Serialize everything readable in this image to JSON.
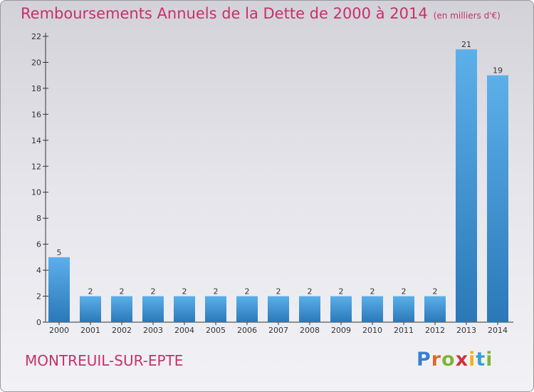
{
  "title": "Remboursements Annuels de la Dette de 2000 à 2014",
  "unit": "(en milliers d'€)",
  "commune": "MONTREUIL-SUR-EPTE",
  "logo": {
    "text": "Proxiti",
    "letter_colors": [
      "#3a7fd0",
      "#e0672a",
      "#7fb43a",
      "#d2303c",
      "#f0b020",
      "#3aa0d0",
      "#7fb43a"
    ]
  },
  "colors": {
    "title": "#c8306a",
    "bar_top": "#5cb0ea",
    "bar_bottom": "#2a78b8",
    "axis": "#333333"
  },
  "chart_data": {
    "type": "bar",
    "categories": [
      "2000",
      "2001",
      "2002",
      "2003",
      "2004",
      "2005",
      "2006",
      "2007",
      "2008",
      "2009",
      "2010",
      "2011",
      "2012",
      "2013",
      "2014"
    ],
    "values": [
      5,
      2,
      2,
      2,
      2,
      2,
      2,
      2,
      2,
      2,
      2,
      2,
      2,
      21,
      19
    ],
    "data_labels": [
      "5",
      "2",
      "2",
      "2",
      "2",
      "2",
      "2",
      "2",
      "2",
      "2",
      "2",
      "2",
      "2",
      "21",
      "19"
    ],
    "yticks": [
      0,
      2,
      4,
      6,
      8,
      10,
      12,
      14,
      16,
      18,
      20,
      22
    ],
    "ylim": [
      0,
      22
    ],
    "grid": false,
    "legend": "none"
  }
}
